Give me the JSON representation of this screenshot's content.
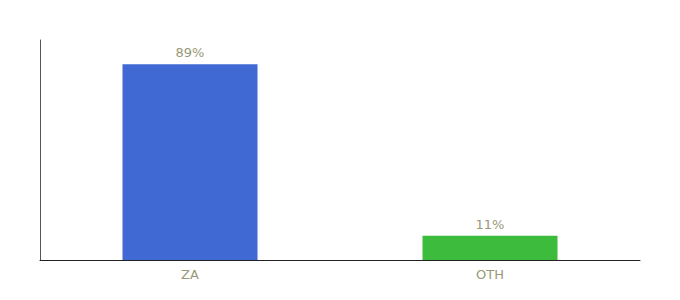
{
  "chart_data": {
    "type": "bar",
    "categories": [
      "ZA",
      "OTH"
    ],
    "values": [
      89,
      11
    ],
    "value_labels": [
      "89%",
      "11%"
    ],
    "colors": [
      "#4169d4",
      "#3dbb3d"
    ],
    "ylim": [
      0,
      100
    ],
    "grid": false,
    "data_labels": true,
    "tick_labels": "x"
  }
}
